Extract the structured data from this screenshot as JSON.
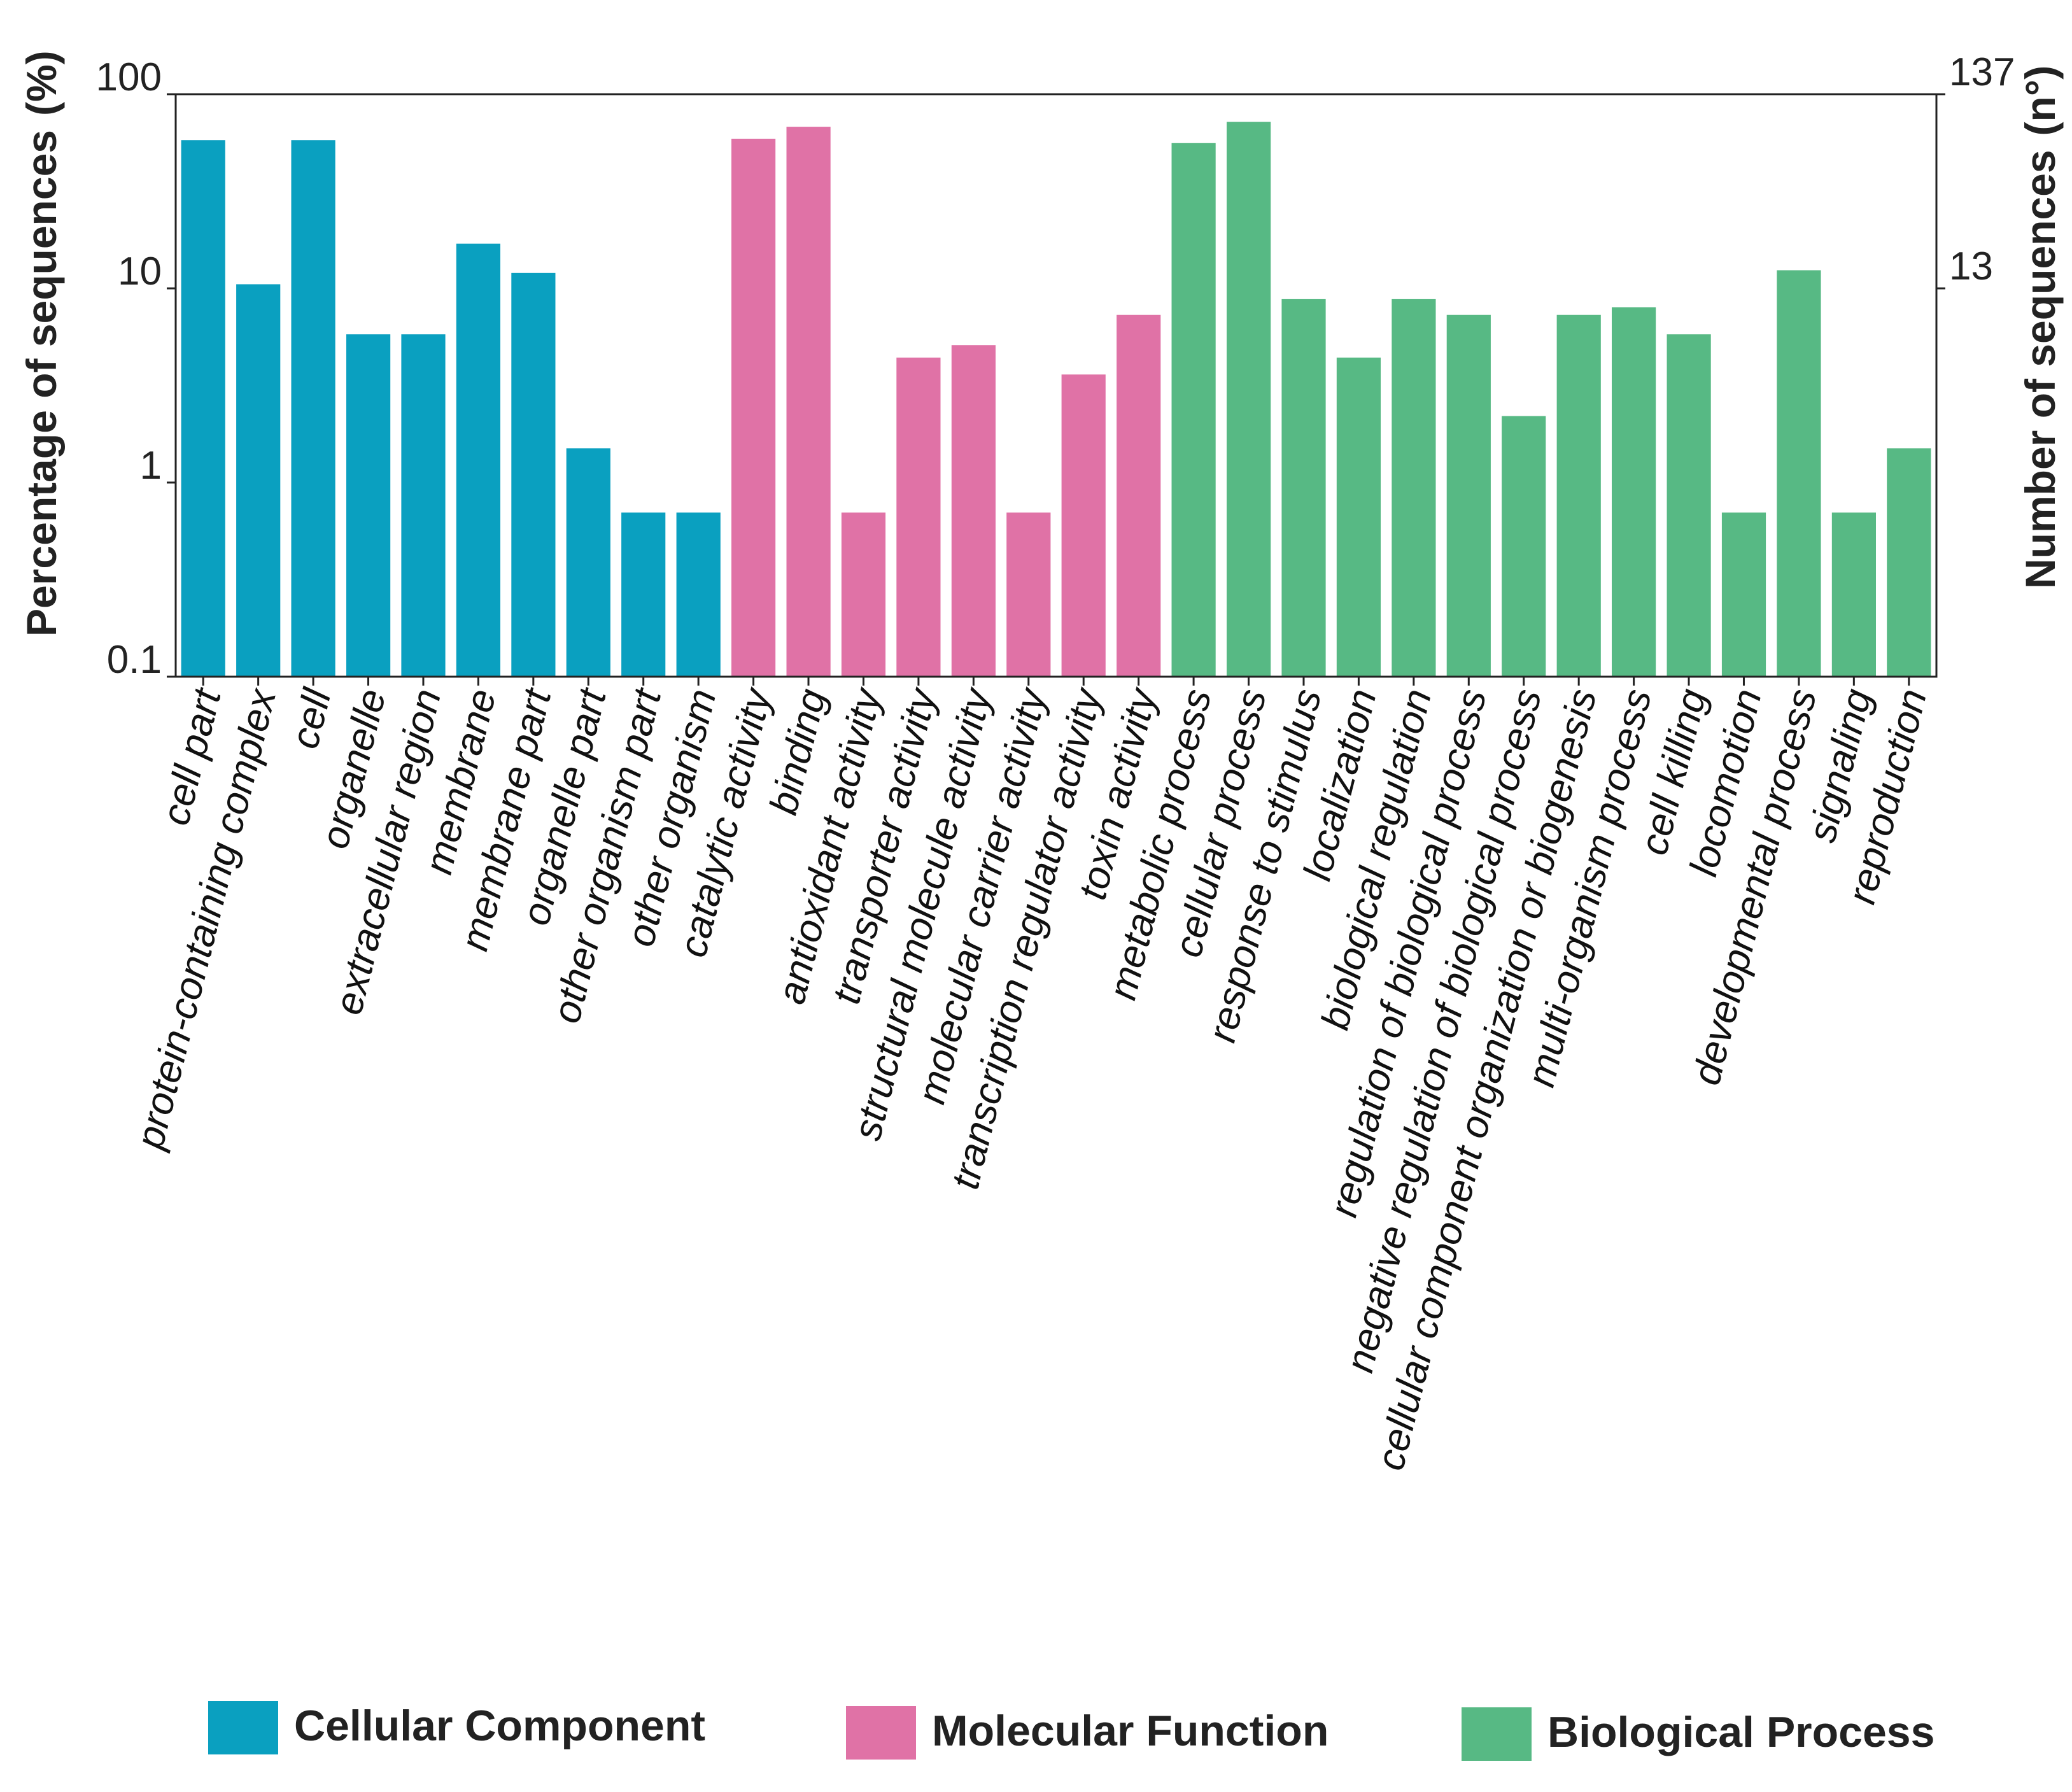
{
  "chart_data": {
    "type": "bar",
    "y_scale": "log",
    "ylabel_left": "Percentage of sequences",
    "ylabel_left_unit": "(%)",
    "ylabel_right": "Number of sequences",
    "ylabel_right_unit": "(n°)",
    "ylim": [
      0.1,
      100
    ],
    "y_ticks_left": [
      "100",
      "10",
      "1",
      "0.1"
    ],
    "y_tick_values_left": [
      100,
      10,
      1,
      0.1
    ],
    "y_ticks_right": [
      "137",
      "13"
    ],
    "y_tick_values_right": [
      100,
      10
    ],
    "colors": {
      "Cellular Component": "#0aa0c0",
      "Molecular Function": "#e072a6",
      "Biological Process": "#57b984"
    },
    "legend": [
      {
        "label": "Cellular Component",
        "color": "#0aa0c0"
      },
      {
        "label": "Molecular Function",
        "color": "#e072a6"
      },
      {
        "label": "Biological Process",
        "color": "#57b984"
      }
    ],
    "categories": [
      "cell part",
      "protein-containing complex",
      "cell",
      "organelle",
      "extracellular region",
      "membrane",
      "membrane part",
      "organelle part",
      "other organism part",
      "other organism",
      "catalytic activity",
      "binding",
      "antioxidant activity",
      "transporter activity",
      "structural molecule activity",
      "molecular carrier activity",
      "transcription regulator activity",
      "toxin activity",
      "metabolic process",
      "cellular process",
      "response to stimulus",
      "localization",
      "biological regulation",
      "regulation of biological process",
      "negative regulation of biological process",
      "cellular component organization or biogenesis",
      "multi-organism process",
      "cell killing",
      "locomotion",
      "developmental process",
      "signaling",
      "reproduction"
    ],
    "groups": [
      "Cellular Component",
      "Cellular Component",
      "Cellular Component",
      "Cellular Component",
      "Cellular Component",
      "Cellular Component",
      "Cellular Component",
      "Cellular Component",
      "Cellular Component",
      "Cellular Component",
      "Molecular Function",
      "Molecular Function",
      "Molecular Function",
      "Molecular Function",
      "Molecular Function",
      "Molecular Function",
      "Molecular Function",
      "Molecular Function",
      "Biological Process",
      "Biological Process",
      "Biological Process",
      "Biological Process",
      "Biological Process",
      "Biological Process",
      "Biological Process",
      "Biological Process",
      "Biological Process",
      "Biological Process",
      "Biological Process",
      "Biological Process",
      "Biological Process",
      "Biological Process"
    ],
    "values": [
      58,
      10.5,
      58,
      5.8,
      5.8,
      17,
      12,
      1.5,
      0.7,
      0.7,
      59,
      68,
      0.7,
      4.4,
      5.1,
      0.7,
      3.6,
      7.3,
      56,
      72,
      8.8,
      4.4,
      8.8,
      7.3,
      2.2,
      7.3,
      8,
      5.8,
      0.7,
      12.4,
      0.7,
      1.5
    ]
  }
}
